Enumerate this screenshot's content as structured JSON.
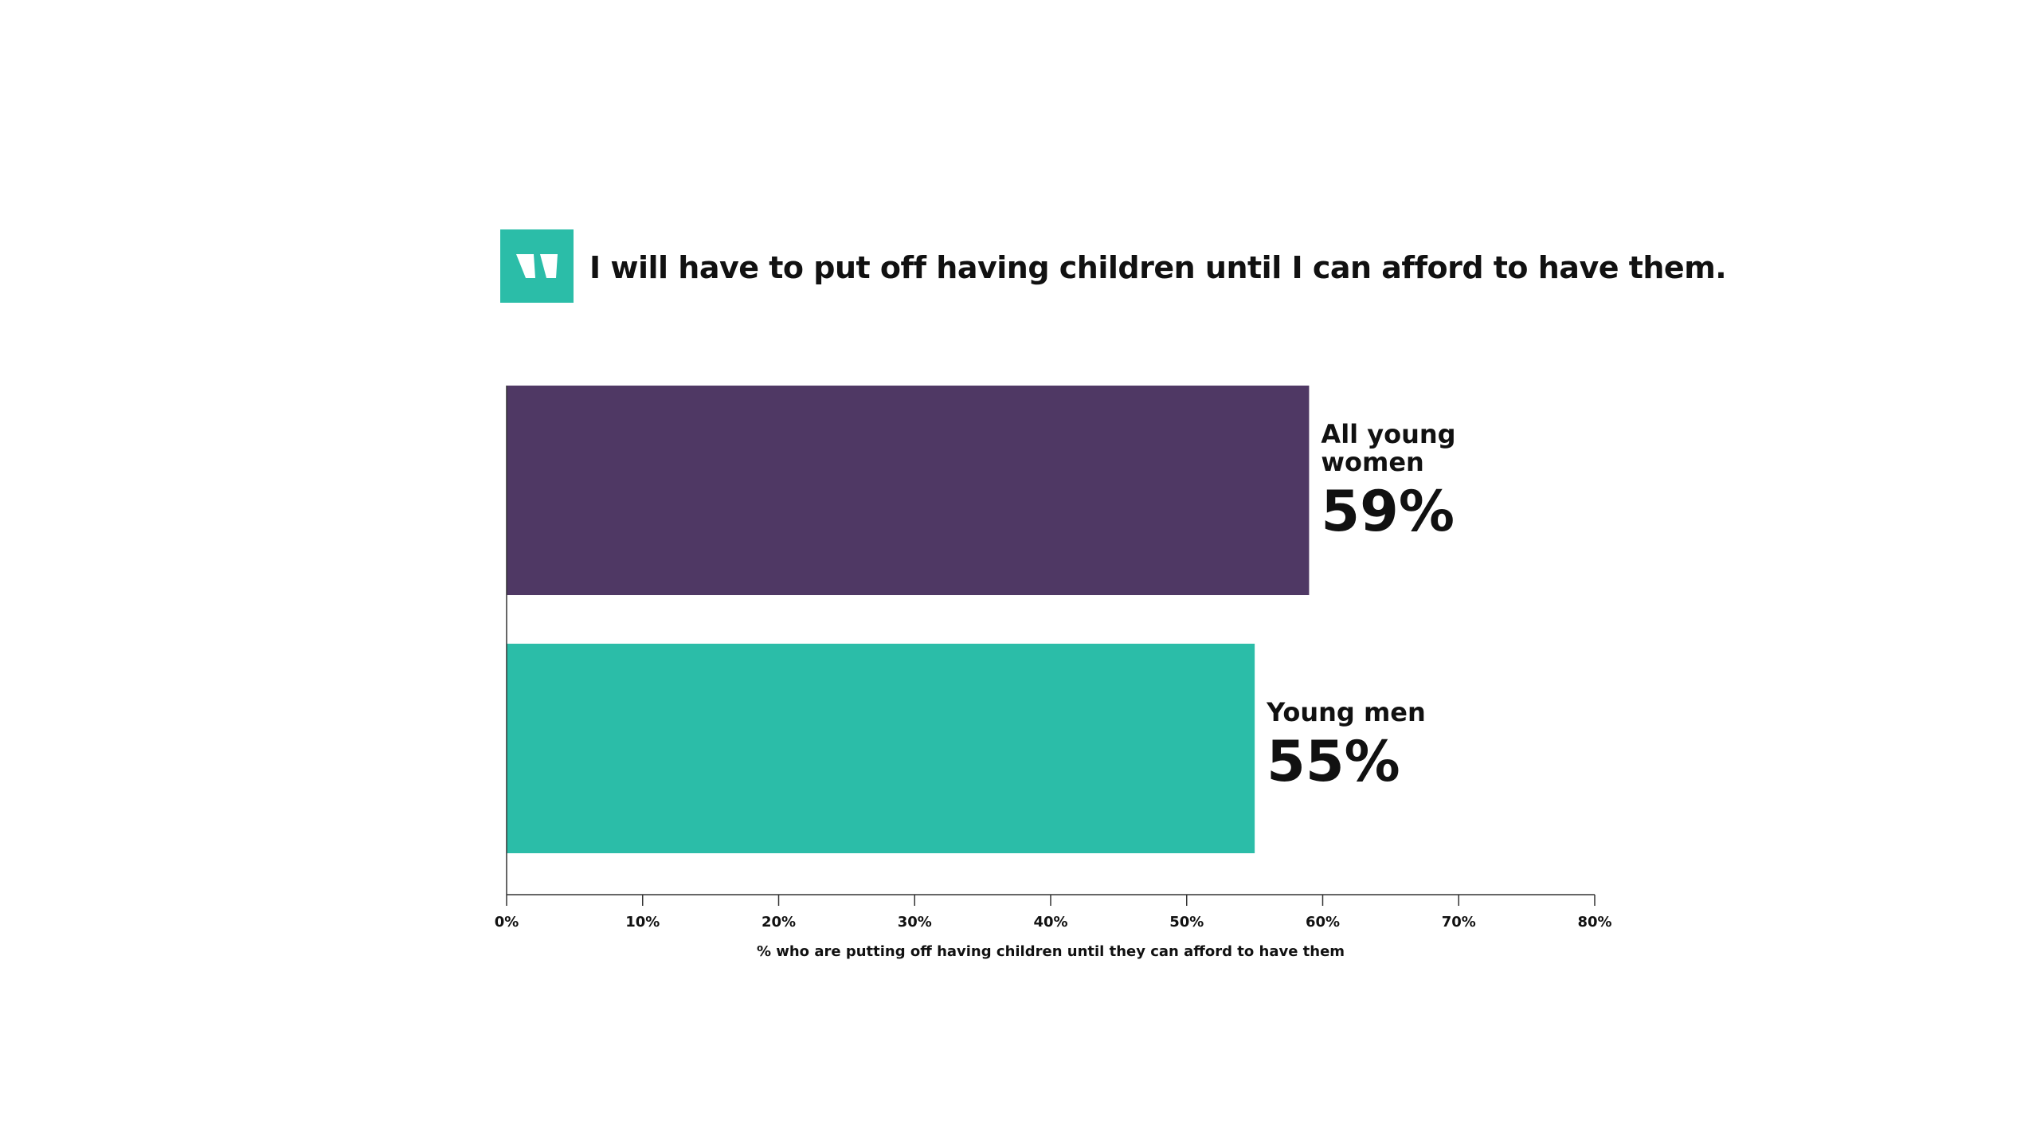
{
  "chart_data": {
    "type": "bar",
    "orientation": "horizontal",
    "title": "I will have to put off having children until I can afford to have them.",
    "xlabel": "% who are putting off having children until they can afford to have them",
    "ylabel": "",
    "xlim": [
      0,
      80
    ],
    "ticks": [
      "0%",
      "10%",
      "20%",
      "30%",
      "40%",
      "50%",
      "60%",
      "70%",
      "80%"
    ],
    "grid": false,
    "legend": "none",
    "categories": [
      {
        "label_lines": [
          "All young",
          "women"
        ],
        "value": 59,
        "value_label": "59%",
        "color": "#4f3864"
      },
      {
        "label_lines": [
          "Young men"
        ],
        "value": 55,
        "value_label": "55%",
        "color": "#2bbda8"
      }
    ]
  },
  "logo": {
    "icon": "quote-marks-logo-icon",
    "color": "#2bbda8"
  }
}
